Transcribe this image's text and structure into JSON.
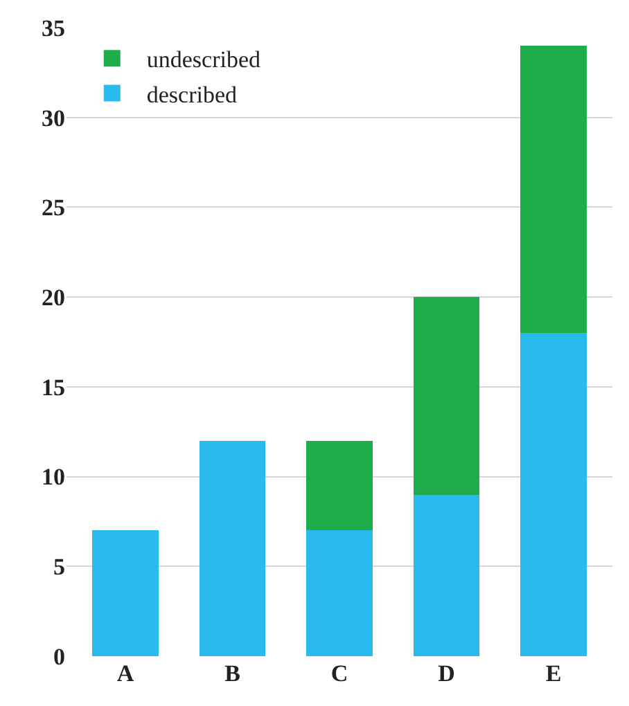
{
  "chart_data": {
    "type": "bar",
    "stacked": true,
    "categories": [
      "A",
      "B",
      "C",
      "D",
      "E"
    ],
    "series": [
      {
        "name": "described",
        "color": "#29bbed",
        "values": [
          7,
          12,
          7,
          9,
          18
        ]
      },
      {
        "name": "undescribed",
        "color": "#1fad4b",
        "values": [
          null,
          null,
          5,
          11,
          16
        ]
      }
    ],
    "ylim": [
      0,
      35
    ],
    "yticks": [
      0,
      5,
      10,
      15,
      20,
      25,
      30,
      35
    ],
    "grid": "y",
    "legend": "top left"
  }
}
